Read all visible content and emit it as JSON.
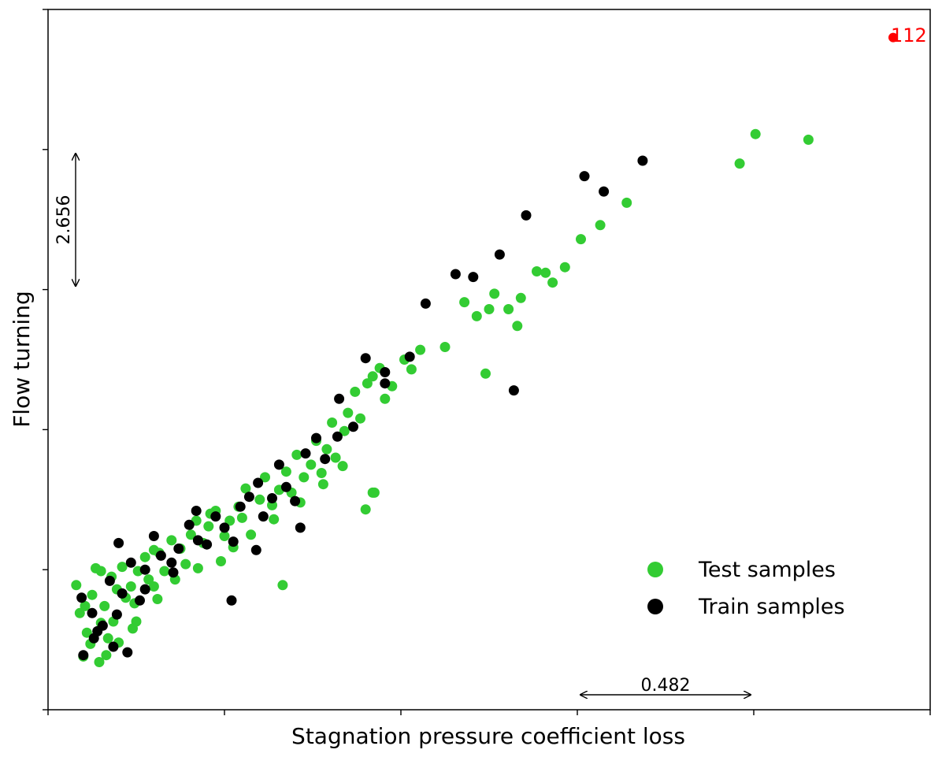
{
  "chart_data": {
    "type": "scatter",
    "title": "",
    "xlabel": "Stagnation pressure coefficient loss",
    "ylabel": "Flow turning",
    "xlim": [
      0,
      5
    ],
    "ylim": [
      0,
      5
    ],
    "x_ticks": [
      0,
      1,
      2,
      3,
      4,
      5
    ],
    "y_ticks": [
      0,
      1,
      2,
      3,
      4,
      5
    ],
    "tick_labels_shown": false,
    "grid": false,
    "legend_position": "lower-right",
    "series": [
      {
        "name": "Test samples",
        "color": "#33cc33",
        "points": [
          [
            0.16,
            0.89
          ],
          [
            0.27,
            1.01
          ],
          [
            0.3,
            0.99
          ],
          [
            0.25,
            0.82
          ],
          [
            0.36,
            0.95
          ],
          [
            0.32,
            0.74
          ],
          [
            0.22,
            0.55
          ],
          [
            0.29,
            0.34
          ],
          [
            0.18,
            0.69
          ],
          [
            0.39,
            0.86
          ],
          [
            0.44,
            0.8
          ],
          [
            0.3,
            0.62
          ],
          [
            0.51,
            0.99
          ],
          [
            0.47,
            0.88
          ],
          [
            0.37,
            0.63
          ],
          [
            0.24,
            0.47
          ],
          [
            0.34,
            0.51
          ],
          [
            0.21,
            0.74
          ],
          [
            0.49,
            0.76
          ],
          [
            0.55,
            1.09
          ],
          [
            0.6,
            1.14
          ],
          [
            0.5,
            0.63
          ],
          [
            0.4,
            0.48
          ],
          [
            0.33,
            0.39
          ],
          [
            0.57,
            0.93
          ],
          [
            0.63,
            1.12
          ],
          [
            0.7,
            1.21
          ],
          [
            0.75,
            1.15
          ],
          [
            0.81,
            1.25
          ],
          [
            0.78,
            1.04
          ],
          [
            0.66,
            0.99
          ],
          [
            0.62,
            0.79
          ],
          [
            0.72,
            0.93
          ],
          [
            0.84,
            1.35
          ],
          [
            0.88,
            1.19
          ],
          [
            0.91,
            1.31
          ],
          [
            0.85,
            1.01
          ],
          [
            0.95,
            1.42
          ],
          [
            1.0,
            1.24
          ],
          [
            1.03,
            1.35
          ],
          [
            1.05,
            1.16
          ],
          [
            0.98,
            1.06
          ],
          [
            0.92,
            1.4
          ],
          [
            1.08,
            1.45
          ],
          [
            1.12,
            1.58
          ],
          [
            1.1,
            1.37
          ],
          [
            1.15,
            1.25
          ],
          [
            1.2,
            1.5
          ],
          [
            1.23,
            1.66
          ],
          [
            1.27,
            1.46
          ],
          [
            1.31,
            1.57
          ],
          [
            1.35,
            1.7
          ],
          [
            1.38,
            1.55
          ],
          [
            1.28,
            1.36
          ],
          [
            1.41,
            1.82
          ],
          [
            1.45,
            1.66
          ],
          [
            1.43,
            1.48
          ],
          [
            1.49,
            1.75
          ],
          [
            1.52,
            1.92
          ],
          [
            1.55,
            1.69
          ],
          [
            1.58,
            1.86
          ],
          [
            1.61,
            2.05
          ],
          [
            1.63,
            1.8
          ],
          [
            1.56,
            1.61
          ],
          [
            1.68,
            1.99
          ],
          [
            1.7,
            2.12
          ],
          [
            1.74,
            2.27
          ],
          [
            1.77,
            2.08
          ],
          [
            1.81,
            2.33
          ],
          [
            1.84,
            2.38
          ],
          [
            1.88,
            2.44
          ],
          [
            1.91,
            2.22
          ],
          [
            1.95,
            2.31
          ],
          [
            2.02,
            2.5
          ],
          [
            2.06,
            2.43
          ],
          [
            2.11,
            2.57
          ],
          [
            1.8,
            1.43
          ],
          [
            1.67,
            1.74
          ],
          [
            1.84,
            1.55
          ],
          [
            2.25,
            2.59
          ],
          [
            2.36,
            2.91
          ],
          [
            2.43,
            2.81
          ],
          [
            2.5,
            2.86
          ],
          [
            2.53,
            2.97
          ],
          [
            2.61,
            2.86
          ],
          [
            2.68,
            2.94
          ],
          [
            2.77,
            3.13
          ],
          [
            2.82,
            3.12
          ],
          [
            2.86,
            3.05
          ],
          [
            2.93,
            3.16
          ],
          [
            3.02,
            3.36
          ],
          [
            3.13,
            3.46
          ],
          [
            3.28,
            3.62
          ],
          [
            3.92,
            3.9
          ],
          [
            4.01,
            4.11
          ],
          [
            4.31,
            4.07
          ],
          [
            2.48,
            2.4
          ],
          [
            2.66,
            2.74
          ],
          [
            1.33,
            0.89
          ],
          [
            1.85,
            1.55
          ],
          [
            0.2,
            0.38
          ],
          [
            0.48,
            0.58
          ],
          [
            0.6,
            0.88
          ],
          [
            0.42,
            1.02
          ]
        ]
      },
      {
        "name": "Train samples",
        "color": "#000000",
        "points": [
          [
            0.25,
            0.69
          ],
          [
            0.35,
            0.92
          ],
          [
            0.42,
            0.83
          ],
          [
            0.28,
            0.56
          ],
          [
            0.19,
            0.8
          ],
          [
            0.47,
            1.05
          ],
          [
            0.52,
            0.78
          ],
          [
            0.37,
            0.45
          ],
          [
            0.31,
            0.6
          ],
          [
            0.4,
            1.19
          ],
          [
            0.55,
            1.0
          ],
          [
            0.6,
            1.24
          ],
          [
            0.64,
            1.1
          ],
          [
            0.7,
            1.05
          ],
          [
            0.74,
            1.15
          ],
          [
            0.8,
            1.32
          ],
          [
            0.85,
            1.21
          ],
          [
            0.9,
            1.18
          ],
          [
            0.95,
            1.38
          ],
          [
            1.0,
            1.3
          ],
          [
            1.05,
            1.2
          ],
          [
            1.09,
            1.45
          ],
          [
            1.14,
            1.52
          ],
          [
            1.19,
            1.62
          ],
          [
            1.22,
            1.38
          ],
          [
            1.27,
            1.51
          ],
          [
            1.31,
            1.75
          ],
          [
            1.35,
            1.59
          ],
          [
            1.4,
            1.49
          ],
          [
            1.46,
            1.83
          ],
          [
            1.52,
            1.94
          ],
          [
            1.57,
            1.79
          ],
          [
            1.65,
            2.22
          ],
          [
            1.73,
            2.02
          ],
          [
            1.8,
            2.51
          ],
          [
            1.91,
            2.33
          ],
          [
            2.05,
            2.52
          ],
          [
            2.14,
            2.9
          ],
          [
            2.31,
            3.11
          ],
          [
            2.41,
            3.09
          ],
          [
            2.56,
            3.25
          ],
          [
            2.71,
            3.53
          ],
          [
            3.04,
            3.81
          ],
          [
            3.15,
            3.7
          ],
          [
            3.37,
            3.92
          ],
          [
            0.26,
            0.51
          ],
          [
            0.45,
            0.41
          ],
          [
            1.04,
            0.78
          ],
          [
            1.18,
            1.14
          ],
          [
            1.64,
            1.95
          ],
          [
            1.43,
            1.3
          ],
          [
            0.84,
            1.42
          ],
          [
            1.91,
            2.41
          ],
          [
            0.2,
            0.39
          ],
          [
            0.39,
            0.68
          ],
          [
            0.55,
            0.86
          ],
          [
            0.71,
            0.98
          ],
          [
            2.64,
            2.28
          ]
        ]
      },
      {
        "name": "112",
        "color": "#ff0000",
        "points": [
          [
            4.79,
            4.8
          ]
        ]
      }
    ],
    "annotations": [
      {
        "text": "2.656",
        "kind": "vertical-span",
        "axis": "y",
        "from": 3.0,
        "to": 4.0
      },
      {
        "text": "0.482",
        "kind": "horizontal-span",
        "axis": "x",
        "from": 3.03,
        "to": 4.0
      },
      {
        "text": "112",
        "kind": "point-label",
        "color": "#ff0000",
        "x": 4.79,
        "y": 4.8
      }
    ]
  }
}
